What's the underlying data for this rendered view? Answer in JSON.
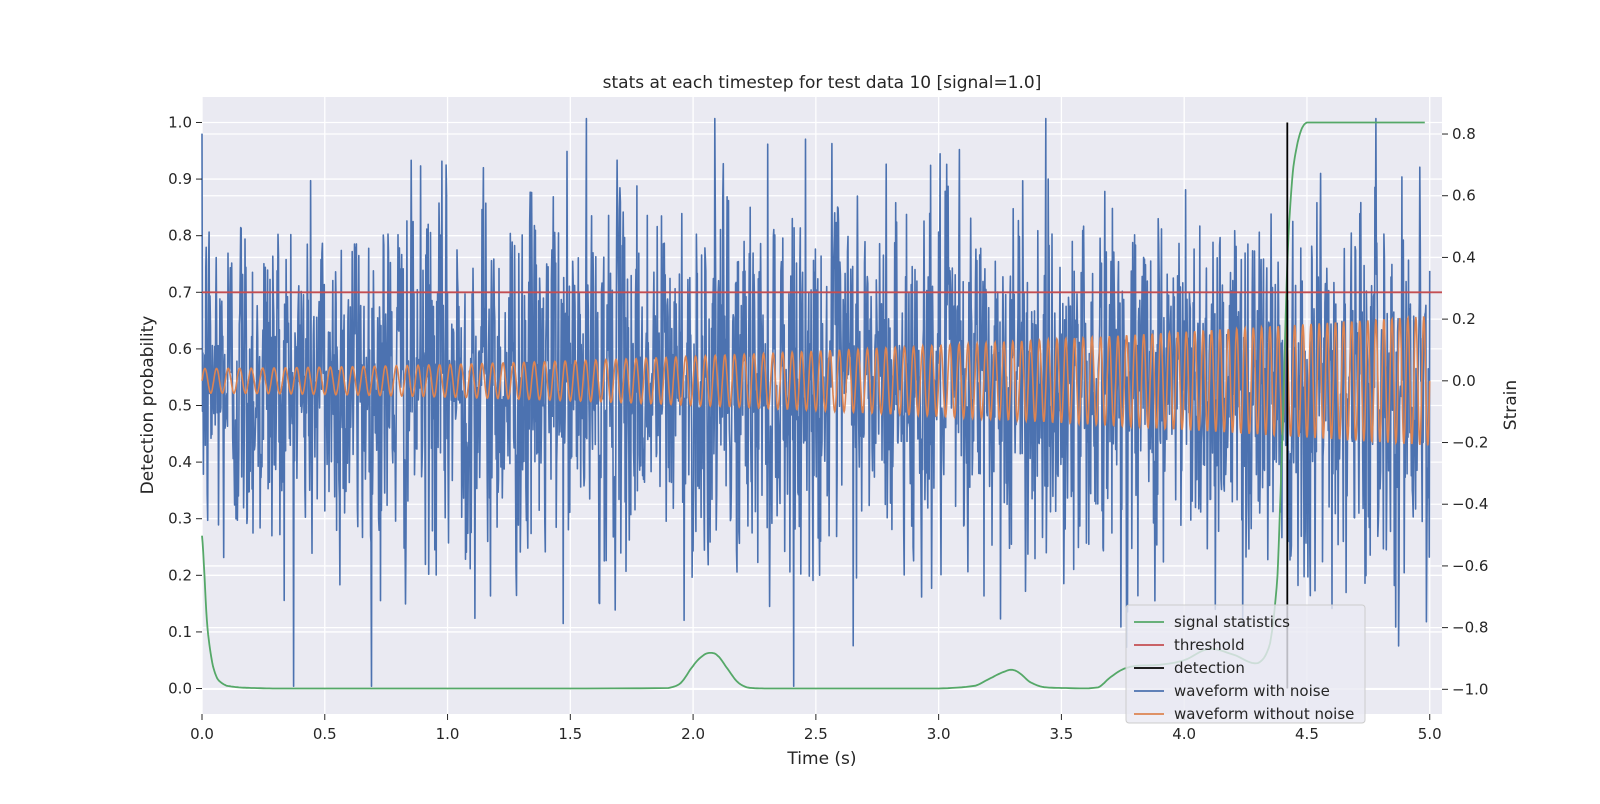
{
  "chart_data": {
    "type": "line",
    "title": "stats at each timestep for test data 10 [signal=1.0]",
    "xlabel": "Time (s)",
    "ylabel": "Detection probability",
    "ylabel_right": "Strain",
    "xlim": [
      0.0,
      5.05
    ],
    "ylim": [
      -0.045,
      1.045
    ],
    "ylim_right": [
      -1.08,
      0.92
    ],
    "x_ticks": [
      0.0,
      0.5,
      1.0,
      1.5,
      2.0,
      2.5,
      3.0,
      3.5,
      4.0,
      4.5,
      5.0
    ],
    "x_tick_labels": [
      "0.0",
      "0.5",
      "1.0",
      "1.5",
      "2.0",
      "2.5",
      "3.0",
      "3.5",
      "4.0",
      "4.5",
      "5.0"
    ],
    "y_ticks": [
      0.0,
      0.1,
      0.2,
      0.3,
      0.4,
      0.5,
      0.6,
      0.7,
      0.8,
      0.9,
      1.0
    ],
    "y_tick_labels": [
      "0.0",
      "0.1",
      "0.2",
      "0.3",
      "0.4",
      "0.5",
      "0.6",
      "0.7",
      "0.8",
      "0.9",
      "1.0"
    ],
    "y_right_ticks": [
      -1.0,
      -0.8,
      -0.6,
      -0.4,
      -0.2,
      0.0,
      0.2,
      0.4,
      0.6,
      0.8
    ],
    "y_right_tick_labels": [
      "−1.0",
      "−0.8",
      "−0.6",
      "−0.4",
      "−0.2",
      "0.0",
      "0.2",
      "0.4",
      "0.6",
      "0.8"
    ],
    "grid": true,
    "legend_position": "bottom-right",
    "colors": {
      "signal_statistics": "#55a868",
      "threshold": "#c44e52",
      "detection": "#000000",
      "waveform_with_noise": "#4c72b0",
      "waveform_without_noise": "#dd8452",
      "plot_background": "#eaeaf2",
      "grid": "#ffffff"
    },
    "series": [
      {
        "name": "signal statistics",
        "axis": "left",
        "x": [
          0.0,
          0.02,
          0.04,
          0.06,
          0.08,
          0.1,
          0.15,
          0.2,
          0.3,
          1.0,
          1.9,
          1.95,
          2.0,
          2.04,
          2.07,
          2.1,
          2.14,
          2.18,
          2.22,
          2.3,
          3.0,
          3.15,
          3.22,
          3.27,
          3.3,
          3.33,
          3.37,
          3.42,
          3.5,
          3.65,
          3.7,
          3.75,
          3.8,
          3.9,
          4.0,
          4.1,
          4.2,
          4.3,
          4.35,
          4.38,
          4.4,
          4.42,
          4.44,
          4.46,
          4.48,
          4.5,
          4.55,
          4.98
        ],
        "y": [
          0.27,
          0.12,
          0.05,
          0.02,
          0.01,
          0.005,
          0.002,
          0.001,
          0.0,
          0.0,
          0.001,
          0.01,
          0.04,
          0.058,
          0.063,
          0.058,
          0.035,
          0.012,
          0.002,
          0.0,
          0.0,
          0.005,
          0.02,
          0.03,
          0.033,
          0.027,
          0.012,
          0.003,
          0.001,
          0.002,
          0.02,
          0.034,
          0.04,
          0.042,
          0.05,
          0.07,
          0.06,
          0.045,
          0.08,
          0.2,
          0.45,
          0.75,
          0.9,
          0.96,
          0.99,
          1.0,
          1.0,
          1.0
        ]
      },
      {
        "name": "threshold",
        "axis": "left",
        "x": [
          0.0,
          5.05
        ],
        "y": [
          0.7,
          0.7
        ]
      },
      {
        "name": "detection",
        "axis": "left",
        "x": [
          4.42,
          4.42
        ],
        "y": [
          0.0,
          1.0
        ]
      },
      {
        "name": "waveform with noise",
        "axis": "right",
        "x_range": [
          0.0,
          5.0
        ],
        "y_range": [
          -0.99,
          0.85
        ],
        "description": "dense random noise with chirp"
      },
      {
        "name": "waveform without noise",
        "axis": "right",
        "x_range": [
          0.0,
          5.0
        ],
        "amplitude_start": 0.04,
        "amplitude_end": 0.21,
        "cycles": 130
      }
    ]
  }
}
